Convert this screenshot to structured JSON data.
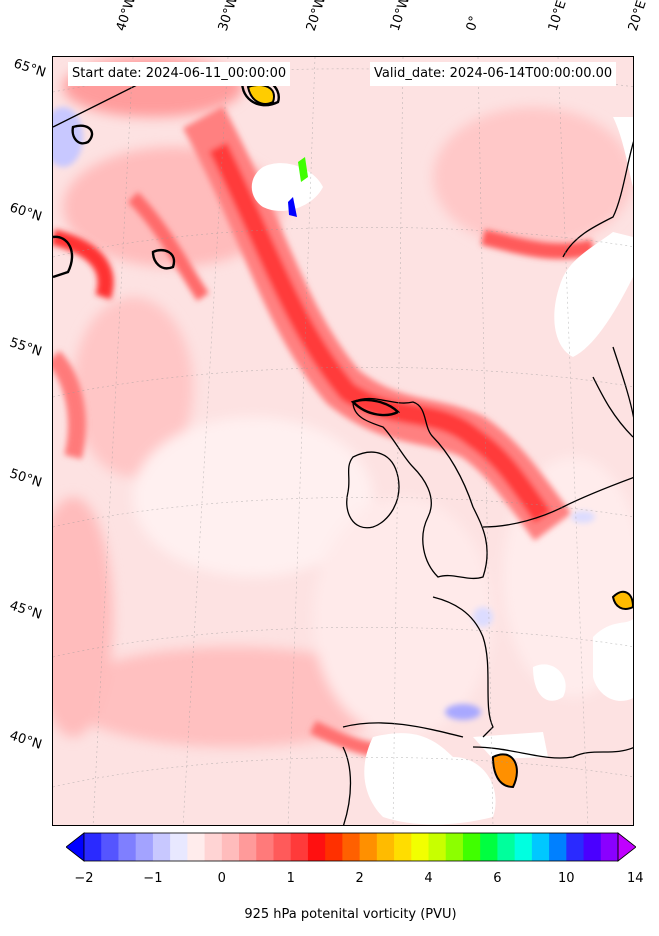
{
  "header": {
    "start_date": "Start date: 2024-06-11_00:00:00",
    "valid_date": "Valid_date: 2024-06-14T00:00:00.00"
  },
  "lat_labels": [
    "65°N",
    "60°N",
    "55°N",
    "50°N",
    "45°N",
    "40°N"
  ],
  "lon_labels": [
    "40°W",
    "30°W",
    "20°W",
    "10°W",
    "0°",
    "10°E",
    "20°E"
  ],
  "colorbar": {
    "label": "925 hPa potenital vorticity (PVU)",
    "tick_labels": [
      "−2",
      "−1",
      "0",
      "1",
      "2",
      "4",
      "6",
      "10",
      "14"
    ],
    "colors": [
      "#0000ff",
      "#2a2aff",
      "#5555ff",
      "#7f7fff",
      "#a3a3ff",
      "#c8c8ff",
      "#e8e8ff",
      "#ffecec",
      "#ffd4d4",
      "#ffbcbc",
      "#ff9a9a",
      "#ff7a7a",
      "#ff5a5a",
      "#ff3a3a",
      "#ff1010",
      "#ff3000",
      "#ff6000",
      "#ff9000",
      "#ffbb00",
      "#ffdd00",
      "#f2ff00",
      "#c8ff00",
      "#8cff00",
      "#40ff00",
      "#00ff40",
      "#00ff9c",
      "#00ffe0",
      "#00c8ff",
      "#0080ff",
      "#2a2aff",
      "#4a00ff",
      "#8a00ff",
      "#c000ff"
    ]
  }
}
